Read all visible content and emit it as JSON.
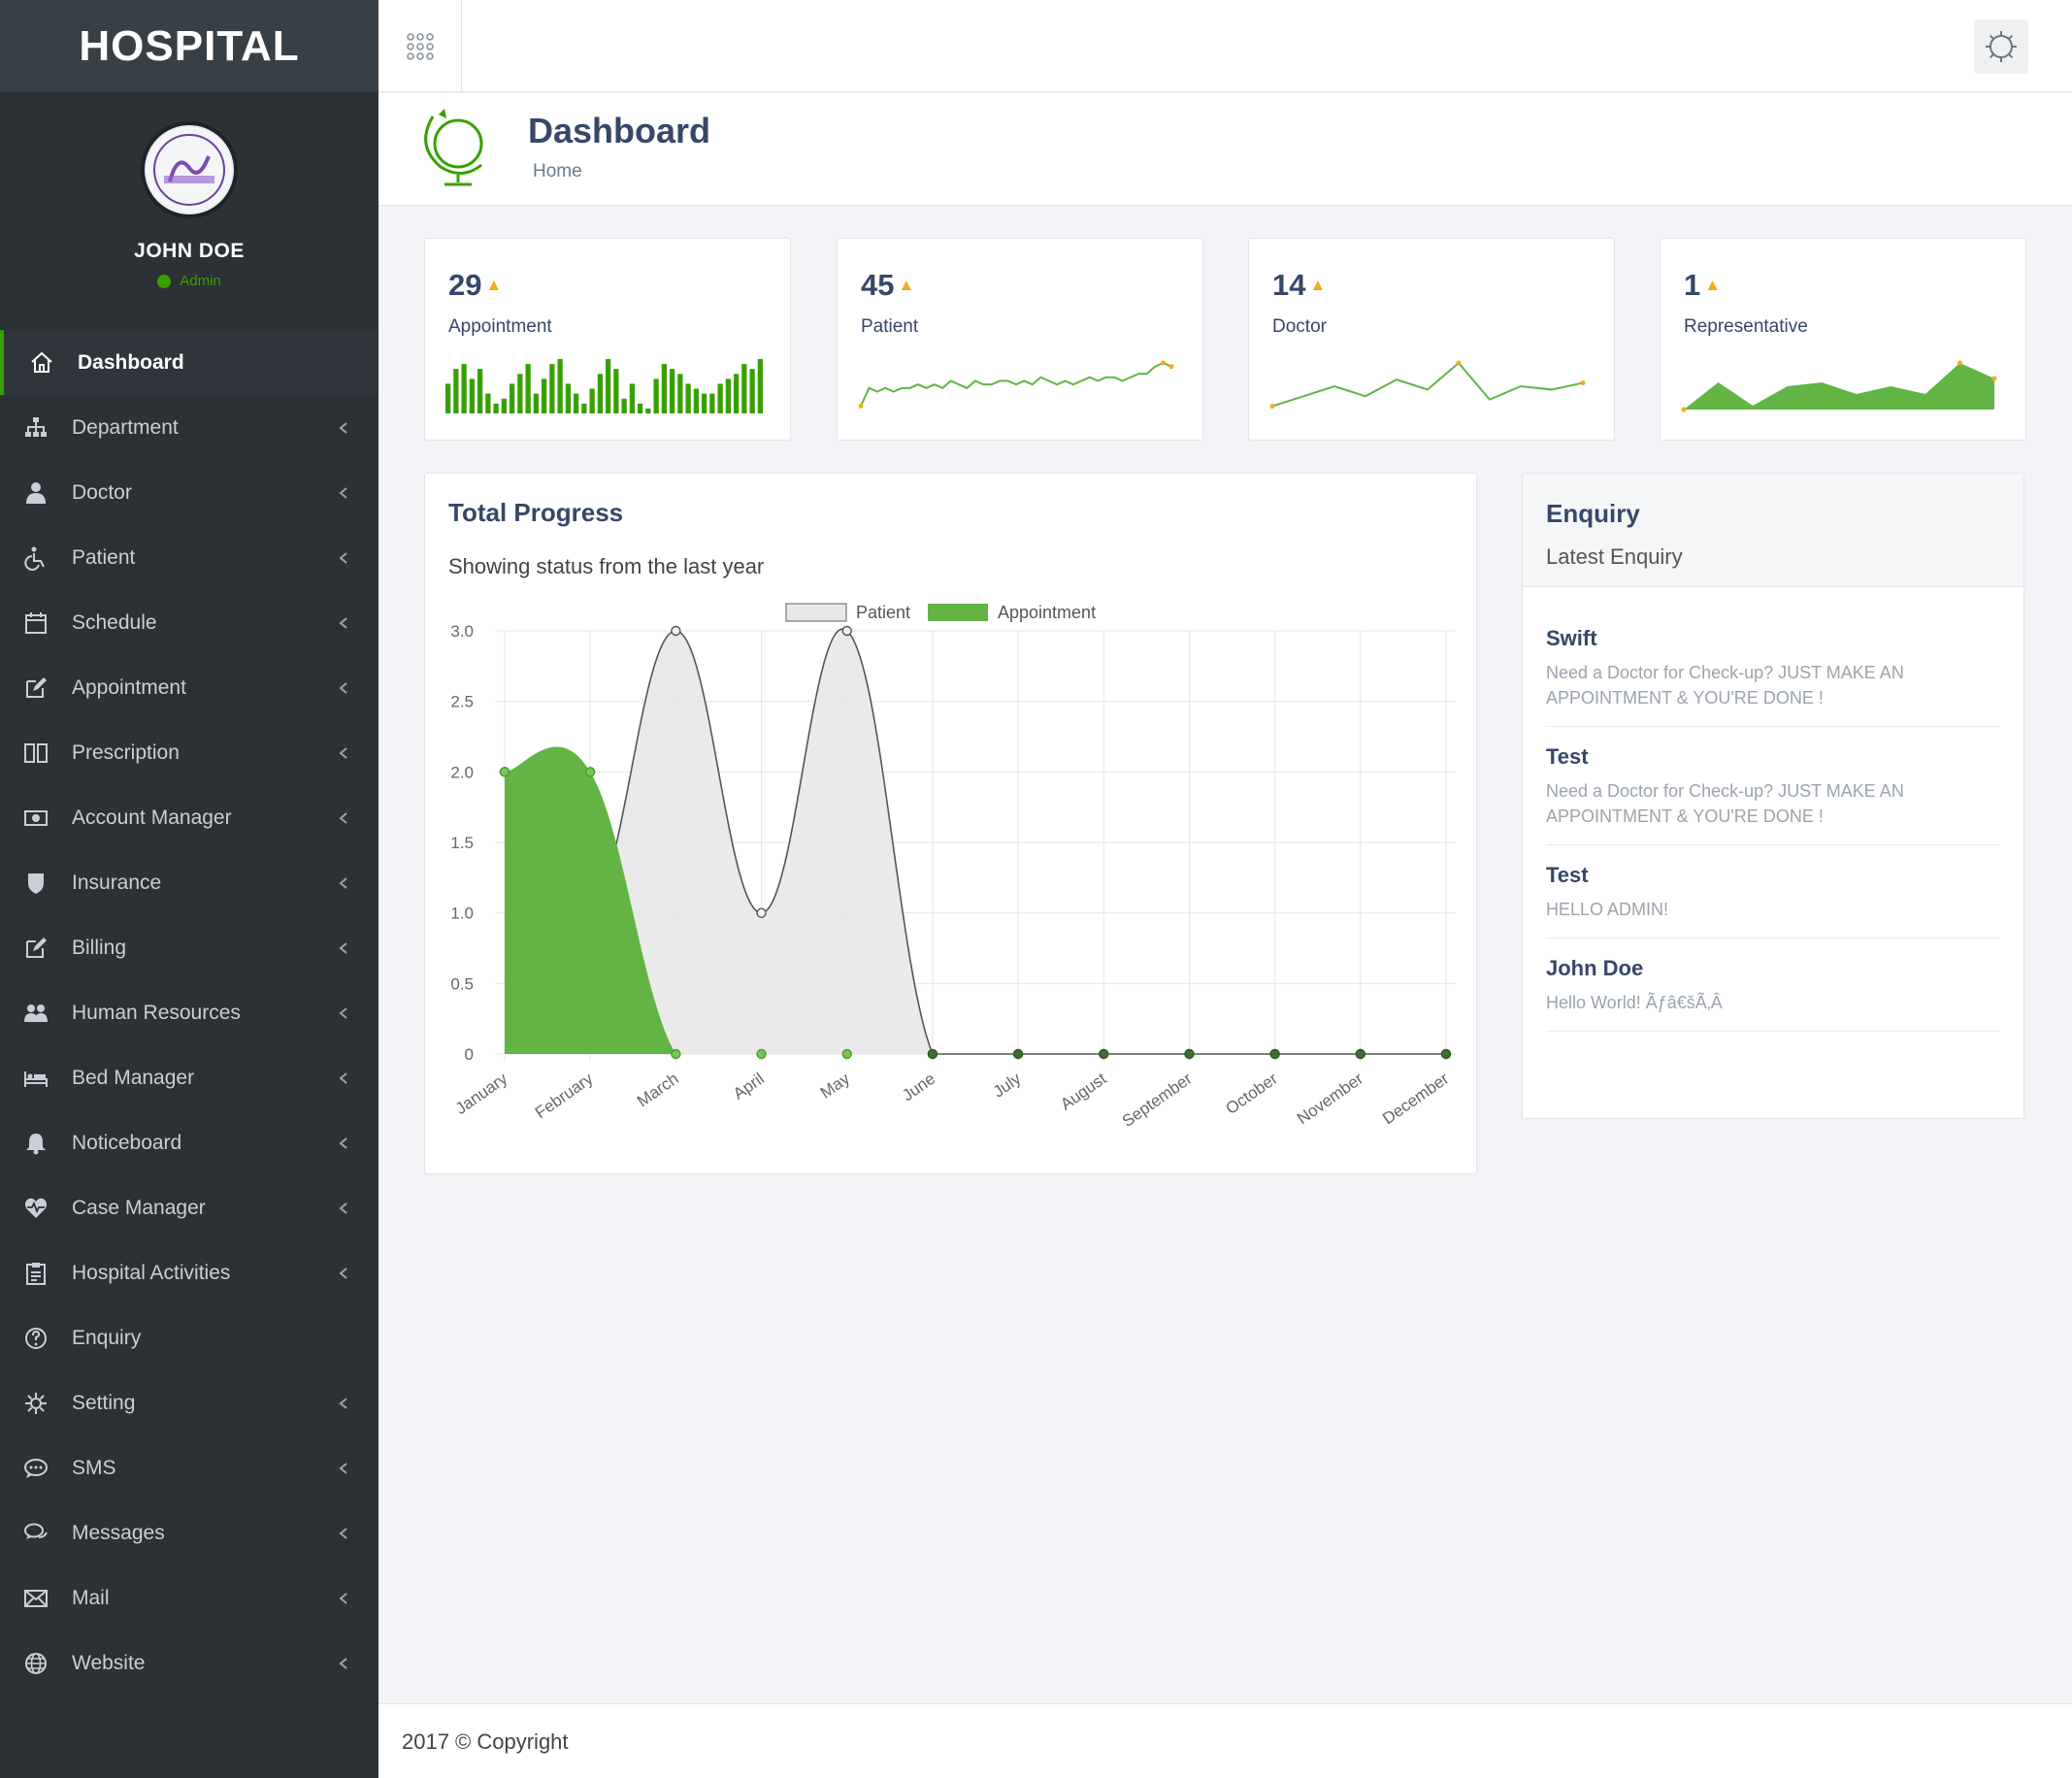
{
  "brand": "HOSPITAL",
  "user": {
    "name": "JOHN DOE",
    "role": "Admin"
  },
  "menu": [
    {
      "label": "Dashboard",
      "icon": "home-icon",
      "active": true,
      "chevron": false
    },
    {
      "label": "Department",
      "icon": "sitemap-icon",
      "chevron": true
    },
    {
      "label": "Doctor",
      "icon": "user-md-icon",
      "chevron": true
    },
    {
      "label": "Patient",
      "icon": "wheelchair-icon",
      "chevron": true
    },
    {
      "label": "Schedule",
      "icon": "calendar-icon",
      "chevron": true
    },
    {
      "label": "Appointment",
      "icon": "edit-icon",
      "chevron": true
    },
    {
      "label": "Prescription",
      "icon": "book-icon",
      "chevron": true
    },
    {
      "label": "Account Manager",
      "icon": "money-icon",
      "chevron": true
    },
    {
      "label": "Insurance",
      "icon": "shield-icon",
      "chevron": true
    },
    {
      "label": "Billing",
      "icon": "pencil-square-icon",
      "chevron": true
    },
    {
      "label": "Human Resources",
      "icon": "users-icon",
      "chevron": true
    },
    {
      "label": "Bed Manager",
      "icon": "bed-icon",
      "chevron": true
    },
    {
      "label": "Noticeboard",
      "icon": "bell-icon",
      "chevron": true
    },
    {
      "label": "Case Manager",
      "icon": "heartbeat-icon",
      "chevron": true
    },
    {
      "label": "Hospital Activities",
      "icon": "clipboard-icon",
      "chevron": true
    },
    {
      "label": "Enquiry",
      "icon": "question-circle-icon",
      "chevron": false
    },
    {
      "label": "Setting",
      "icon": "cog-icon",
      "chevron": true
    },
    {
      "label": "SMS",
      "icon": "comment-icon",
      "chevron": true
    },
    {
      "label": "Messages",
      "icon": "comments-icon",
      "chevron": true
    },
    {
      "label": "Mail",
      "icon": "envelope-icon",
      "chevron": true
    },
    {
      "label": "Website",
      "icon": "globe-icon",
      "chevron": true
    }
  ],
  "page_header": {
    "title": "Dashboard",
    "breadcrumb": "Home"
  },
  "stats": [
    {
      "value": "29",
      "trend": "▲",
      "label": "Appointment",
      "spark": "bar",
      "spark_values": [
        6,
        9,
        10,
        7,
        9,
        4,
        2,
        3,
        6,
        8,
        10,
        4,
        7,
        10,
        11,
        6,
        4,
        2,
        5,
        8,
        11,
        9,
        3,
        6,
        2,
        1,
        7,
        10,
        9,
        8,
        6,
        5,
        4,
        4,
        6,
        7,
        8,
        10,
        9,
        11
      ]
    },
    {
      "value": "45",
      "trend": "▲",
      "label": "Patient",
      "spark": "line",
      "spark_values": [
        1,
        6,
        5,
        6,
        5,
        6,
        6,
        7,
        6,
        7,
        6,
        8,
        7,
        6,
        8,
        7,
        7,
        8,
        8,
        7,
        8,
        7,
        9,
        8,
        7,
        8,
        7,
        8,
        9,
        8,
        9,
        9,
        8,
        9,
        10,
        10,
        12,
        13,
        12
      ]
    },
    {
      "value": "14",
      "trend": "▲",
      "label": "Doctor",
      "spark": "line",
      "spark_values": [
        1,
        4,
        7,
        4,
        9,
        6,
        14,
        3,
        7,
        6,
        8
      ]
    },
    {
      "value": "1",
      "trend": "▲",
      "label": "Representative",
      "spark": "area",
      "spark_values": [
        0,
        7,
        1,
        6,
        7,
        4,
        6,
        4,
        12,
        8
      ]
    }
  ],
  "progress": {
    "title": "Total Progress",
    "subtitle": "Showing status from the last year"
  },
  "chart_data": {
    "type": "area",
    "categories": [
      "January",
      "February",
      "March",
      "April",
      "May",
      "June",
      "July",
      "August",
      "September",
      "October",
      "November",
      "December"
    ],
    "series": [
      {
        "name": "Patient",
        "values": [
          2,
          1,
          3,
          1,
          3,
          0,
          0,
          0,
          0,
          0,
          0,
          0
        ],
        "color": "#e8e8e8",
        "stroke": "#555555"
      },
      {
        "name": "Appointment",
        "values": [
          2,
          2,
          0,
          0,
          0,
          0,
          0,
          0,
          0,
          0,
          0,
          0
        ],
        "color": "#62b445",
        "stroke": "#62b445"
      }
    ],
    "ylim": [
      0,
      3
    ],
    "yticks": [
      "0",
      "0.5",
      "1.0",
      "1.5",
      "2.0",
      "2.5",
      "3.0"
    ],
    "legend": "top-center",
    "grid": true
  },
  "enquiry": {
    "title": "Enquiry",
    "subtitle": "Latest Enquiry",
    "items": [
      {
        "name": "Swift",
        "message": "Need a Doctor for Check-up? JUST MAKE AN APPOINTMENT & YOU'RE DONE !"
      },
      {
        "name": "Test",
        "message": "Need a Doctor for Check-up? JUST MAKE AN APPOINTMENT & YOU'RE DONE !"
      },
      {
        "name": "Test",
        "message": "HELLO ADMIN!"
      },
      {
        "name": "John Doe",
        "message": "Hello World! Ãƒâ€šÃ‚Â"
      }
    ]
  },
  "footer": "2017 © Copyright",
  "colors": {
    "sidebar": "#2c3136",
    "accent": "#37a000",
    "chart_green": "#62b445",
    "trend": "#f0ad1c"
  }
}
